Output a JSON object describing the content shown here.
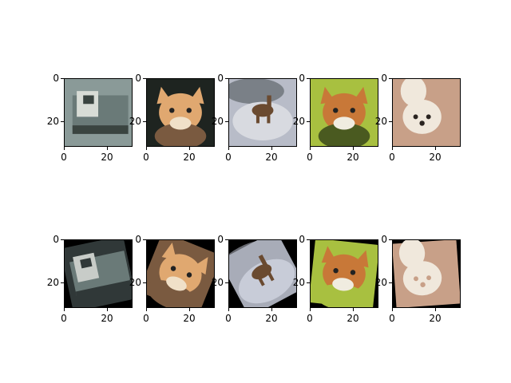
{
  "figure": {
    "rows": [
      [
        {
          "subject": "truck",
          "colors": {
            "bg": "#8a9a98",
            "fg": "#d8dcd6",
            "dark": "#3a4440",
            "accent": "#6a7a78"
          }
        },
        {
          "subject": "cat",
          "colors": {
            "bg": "#1e2420",
            "fg": "#e0a870",
            "dark": "#7a5a40",
            "accent": "#f0e0c8"
          }
        },
        {
          "subject": "deer",
          "colors": {
            "bg": "#b8bcc8",
            "fg": "#6a4a30",
            "dark": "#50585c",
            "accent": "#d8dae0"
          }
        },
        {
          "subject": "cat",
          "colors": {
            "bg": "#a8c040",
            "fg": "#c87838",
            "dark": "#4a5a20",
            "accent": "#f0ece0"
          }
        },
        {
          "subject": "dog",
          "colors": {
            "bg": "#c8a088",
            "fg": "#f0e8dc",
            "dark": "#2a2420",
            "accent": "#d8b8a0"
          }
        }
      ],
      [
        {
          "subject": "truck",
          "colors": {
            "bg": "#000000",
            "fg": "#c8ccc8",
            "dark": "#303838",
            "accent": "#6a7a78"
          }
        },
        {
          "subject": "cat",
          "colors": {
            "bg": "#000000",
            "fg": "#e0a870",
            "dark": "#7a5a40",
            "accent": "#f0e0c8"
          }
        },
        {
          "subject": "deer",
          "colors": {
            "bg": "#000000",
            "fg": "#6a4a30",
            "dark": "#a8acb8",
            "accent": "#c8ccd8"
          }
        },
        {
          "subject": "cat",
          "colors": {
            "bg": "#000000",
            "fg": "#c87838",
            "dark": "#a8c040",
            "accent": "#f0ece0"
          }
        },
        {
          "subject": "dog",
          "colors": {
            "bg": "#000000",
            "fg": "#f0e8dc",
            "dark": "#c8a088",
            "accent": "#d8b8a0"
          }
        }
      ]
    ],
    "y_ticks": [
      "0",
      "20"
    ],
    "x_ticks": [
      "0",
      "20"
    ]
  }
}
